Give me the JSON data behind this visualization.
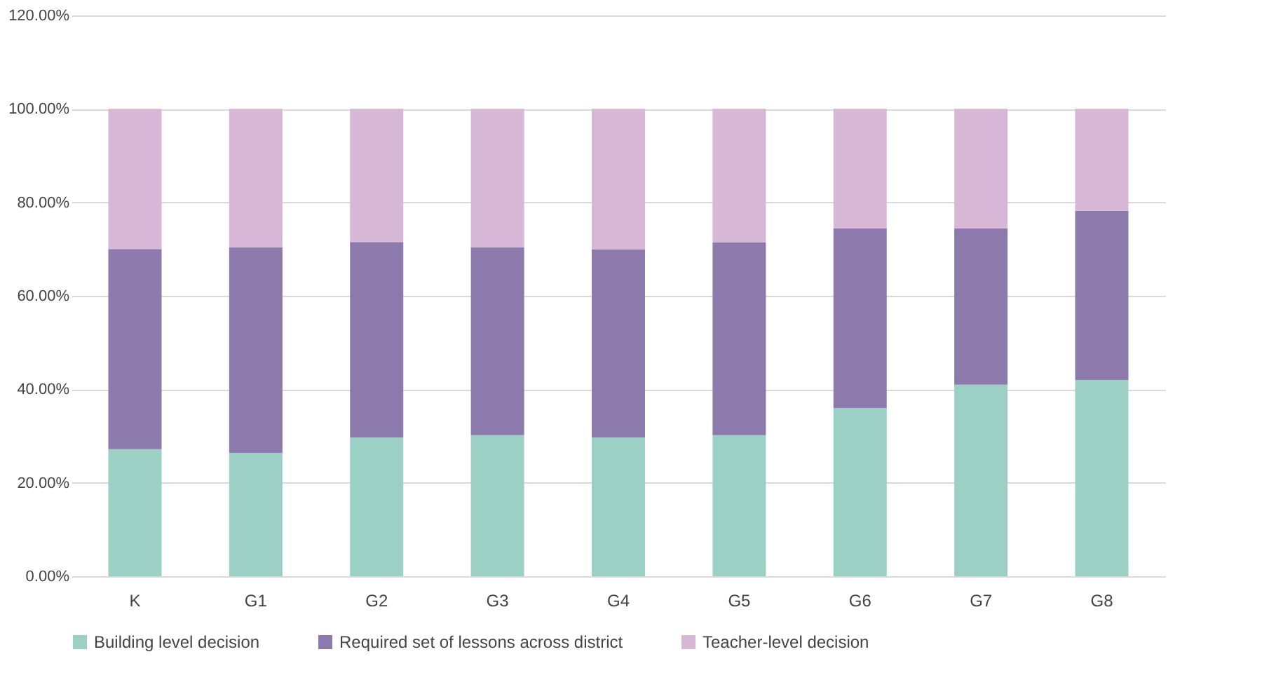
{
  "chart_data": {
    "type": "bar",
    "stacked": true,
    "categories": [
      "K",
      "G1",
      "G2",
      "G3",
      "G4",
      "G5",
      "G6",
      "G7",
      "G8"
    ],
    "series": [
      {
        "name": "Building level decision",
        "color": "#9dd0c5",
        "values": [
          27.2,
          26.4,
          29.7,
          30.2,
          29.7,
          30.2,
          36.0,
          41.0,
          42.0
        ]
      },
      {
        "name": "Required set of lessons across district",
        "color": "#8b7aab",
        "values": [
          42.8,
          44.0,
          41.8,
          40.2,
          40.2,
          41.2,
          38.4,
          33.4,
          36.2
        ]
      },
      {
        "name": "Teacher-level decision",
        "color": "#d6b8d6",
        "values": [
          30.0,
          29.6,
          28.5,
          29.6,
          30.1,
          28.6,
          25.6,
          25.6,
          21.8
        ]
      }
    ],
    "ylim": [
      0,
      120
    ],
    "yticks": [
      {
        "value": 0,
        "label": "0.00%"
      },
      {
        "value": 20,
        "label": "20.00%"
      },
      {
        "value": 40,
        "label": "40.00%"
      },
      {
        "value": 60,
        "label": "60.00%"
      },
      {
        "value": 80,
        "label": "80.00%"
      },
      {
        "value": 100,
        "label": "100.00%"
      },
      {
        "value": 120,
        "label": "120.00%"
      }
    ],
    "grid": "y",
    "legend": "bottom"
  }
}
